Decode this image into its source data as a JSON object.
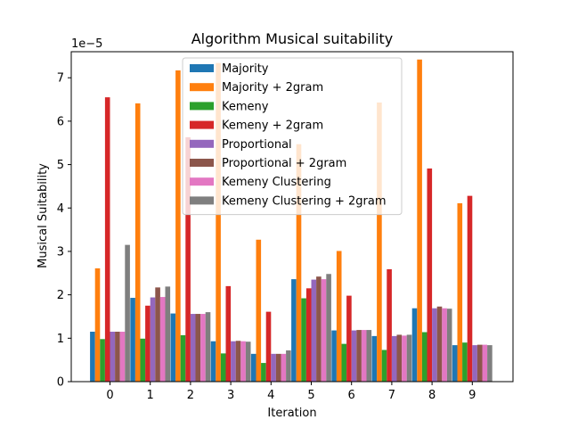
{
  "chart_data": {
    "type": "bar",
    "title": "Algorithm Musical suitability",
    "xlabel": "Iteration",
    "ylabel": "Musical Suitability",
    "y_scale_label": "1e−5",
    "categories": [
      "0",
      "1",
      "2",
      "3",
      "4",
      "5",
      "6",
      "7",
      "8",
      "9"
    ],
    "ylim": [
      0,
      7.6
    ],
    "yticks": [
      "0",
      "1",
      "2",
      "3",
      "4",
      "5",
      "6",
      "7"
    ],
    "legend_position": "top-center",
    "series": [
      {
        "name": "Majority",
        "color": "#1f77b4",
        "values": [
          1.15,
          1.93,
          1.57,
          0.93,
          0.64,
          2.36,
          1.18,
          1.05,
          1.69,
          0.84
        ]
      },
      {
        "name": "Majority + 2gram",
        "color": "#ff7f0e",
        "values": [
          2.61,
          6.41,
          7.17,
          7.34,
          3.27,
          5.47,
          3.01,
          6.43,
          7.42,
          4.11
        ]
      },
      {
        "name": "Kemeny",
        "color": "#2ca02c",
        "values": [
          0.98,
          0.99,
          1.07,
          0.65,
          0.43,
          1.92,
          0.87,
          0.73,
          1.14,
          0.9
        ]
      },
      {
        "name": "Kemeny + 2gram",
        "color": "#d62728",
        "values": [
          6.55,
          1.75,
          5.63,
          2.2,
          1.61,
          2.15,
          1.98,
          2.59,
          4.91,
          4.28
        ]
      },
      {
        "name": "Proportional",
        "color": "#9467bd",
        "values": [
          1.15,
          1.94,
          1.56,
          0.93,
          0.64,
          2.35,
          1.18,
          1.05,
          1.69,
          0.84
        ]
      },
      {
        "name": "Proportional + 2gram",
        "color": "#8c564b",
        "values": [
          1.15,
          2.17,
          1.56,
          0.94,
          0.64,
          2.42,
          1.19,
          1.08,
          1.73,
          0.85
        ]
      },
      {
        "name": "Kemeny Clustering",
        "color": "#e377c2",
        "values": [
          1.15,
          1.95,
          1.56,
          0.93,
          0.64,
          2.36,
          1.19,
          1.06,
          1.69,
          0.85
        ]
      },
      {
        "name": "Kemeny Clustering + 2gram",
        "color": "#7f7f7f",
        "values": [
          3.15,
          2.19,
          1.6,
          0.92,
          0.72,
          2.48,
          1.19,
          1.08,
          1.68,
          0.84
        ]
      }
    ]
  }
}
